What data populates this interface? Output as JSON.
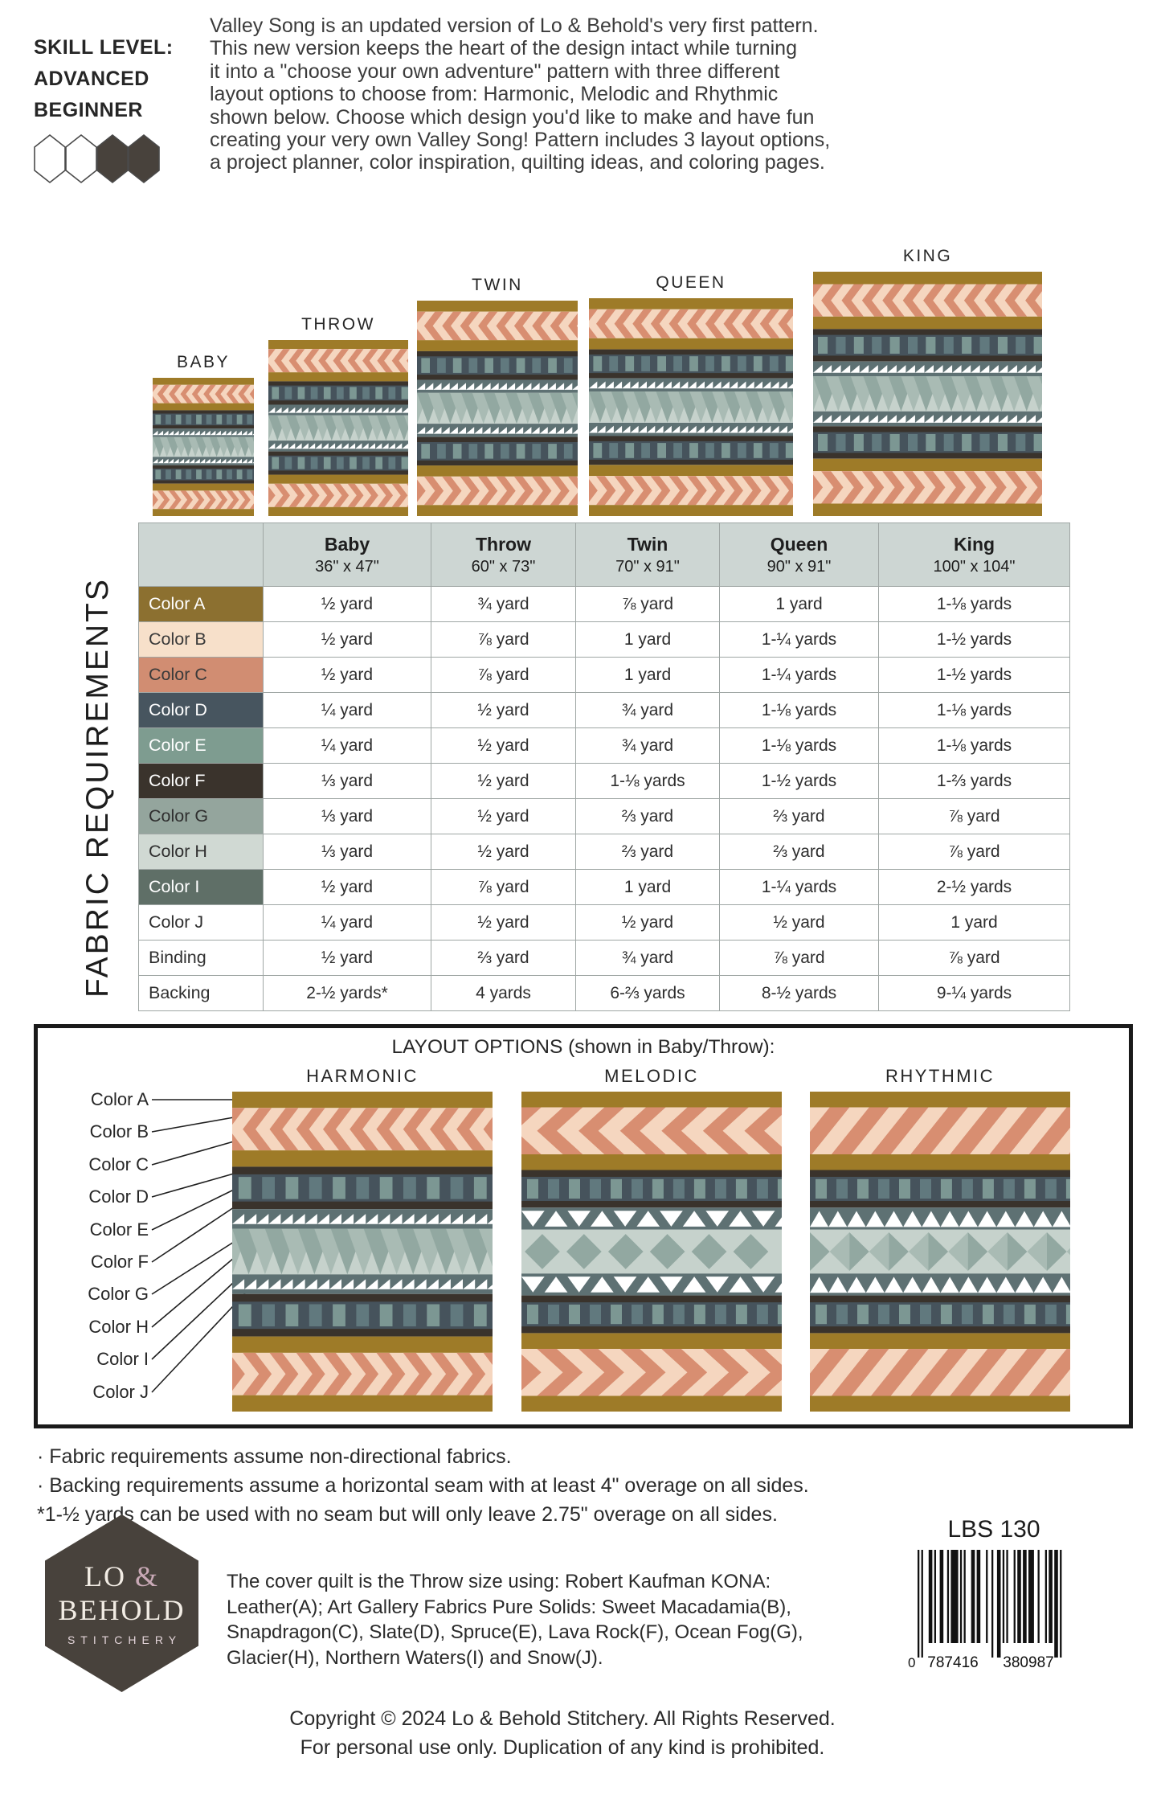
{
  "skill": {
    "title": "SKILL LEVEL:",
    "level_line1": "ADVANCED",
    "level_line2": "BEGINNER",
    "hexagons": [
      "outline",
      "outline",
      "filled",
      "filled"
    ]
  },
  "intro": "Valley Song is an updated version of Lo & Behold's very first pattern.\nThis new version keeps the heart of the design intact while turning\nit into a \"choose your own adventure\" pattern with three different\nlayout options to choose from: Harmonic, Melodic and Rhythmic\nshown below. Choose which design you'd like to make and have fun\ncreating your very own Valley Song! Pattern includes 3 layout options,\na project planner, color inspiration, quilting ideas, and coloring pages.",
  "sizes": [
    "BABY",
    "THROW",
    "TWIN",
    "QUEEN",
    "KING"
  ],
  "fabric_table": {
    "section_title": "FABRIC REQUIREMENTS",
    "columns": [
      {
        "name": "Baby",
        "dims": "36\" x 47\""
      },
      {
        "name": "Throw",
        "dims": "60\" x 73\""
      },
      {
        "name": "Twin",
        "dims": "70\" x 91\""
      },
      {
        "name": "Queen",
        "dims": "90\" x 91\""
      },
      {
        "name": "King",
        "dims": "100\" x 104\""
      }
    ],
    "rows": [
      {
        "label": "Color A",
        "swatch": "#8C7030",
        "text": "#FFFFFF",
        "values": [
          "½ yard",
          "¾ yard",
          "⅞ yard",
          "1 yard",
          "1-⅛ yards"
        ]
      },
      {
        "label": "Color B",
        "swatch": "#F7E0CA",
        "text": "#3A3A3A",
        "values": [
          "½ yard",
          "⅞ yard",
          "1 yard",
          "1-¼ yards",
          "1-½ yards"
        ]
      },
      {
        "label": "Color C",
        "swatch": "#D18D72",
        "text": "#3A3A3A",
        "values": [
          "½ yard",
          "⅞ yard",
          "1 yard",
          "1-¼ yards",
          "1-½ yards"
        ]
      },
      {
        "label": "Color D",
        "swatch": "#47555F",
        "text": "#FFFFFF",
        "values": [
          "¼ yard",
          "½ yard",
          "¾ yard",
          "1-⅛ yards",
          "1-⅛ yards"
        ]
      },
      {
        "label": "Color E",
        "swatch": "#7E9C90",
        "text": "#FFFFFF",
        "values": [
          "¼ yard",
          "½ yard",
          "¾ yard",
          "1-⅛ yards",
          "1-⅛ yards"
        ]
      },
      {
        "label": "Color F",
        "swatch": "#3A332C",
        "text": "#FFFFFF",
        "values": [
          "⅓ yard",
          "½ yard",
          "1-⅛ yards",
          "1-½ yards",
          "1-⅔ yards"
        ]
      },
      {
        "label": "Color G",
        "swatch": "#94A59D",
        "text": "#2F2F2F",
        "values": [
          "⅓ yard",
          "½ yard",
          "⅔ yard",
          "⅔ yard",
          "⅞ yard"
        ]
      },
      {
        "label": "Color H",
        "swatch": "#D0D9D3",
        "text": "#2F2F2F",
        "values": [
          "⅓ yard",
          "½ yard",
          "⅔ yard",
          "⅔ yard",
          "⅞ yard"
        ]
      },
      {
        "label": "Color I",
        "swatch": "#5F6F67",
        "text": "#FFFFFF",
        "values": [
          "½ yard",
          "⅞ yard",
          "1 yard",
          "1-¼ yards",
          "2-½ yards"
        ]
      },
      {
        "label": "Color J",
        "swatch": "#FFFFFF",
        "text": "#2F2F2F",
        "values": [
          "¼ yard",
          "½ yard",
          "½ yard",
          "½ yard",
          "1 yard"
        ]
      },
      {
        "label": "Binding",
        "swatch": "#FFFFFF",
        "text": "#2F2F2F",
        "values": [
          "½ yard",
          "⅔ yard",
          "¾ yard",
          "⅞ yard",
          "⅞ yard"
        ]
      },
      {
        "label": "Backing",
        "swatch": "#FFFFFF",
        "text": "#2F2F2F",
        "values": [
          "2-½ yards*",
          "4 yards",
          "6-⅔ yards",
          "8-½ yards",
          "9-¼ yards"
        ]
      }
    ]
  },
  "layout_options": {
    "title": "LAYOUT OPTIONS (shown in Baby/Throw):",
    "variants": [
      "HARMONIC",
      "MELODIC",
      "RHYTHMIC"
    ],
    "color_labels": [
      "Color A",
      "Color B",
      "Color C",
      "Color D",
      "Color E",
      "Color F",
      "Color G",
      "Color H",
      "Color I",
      "Color J"
    ]
  },
  "notes": [
    "· Fabric requirements assume non-directional fabrics.",
    "· Backing requirements assume a horizontal seam with at least 4\" overage on all sides.",
    "*1-½ yards can be used with no seam but will only leave 2.75\" overage on all sides."
  ],
  "footer": {
    "pattern_number": "LBS 130",
    "barcode_digits": {
      "prefix": "0",
      "group1": "787416",
      "group2": "380987"
    },
    "logo": {
      "line1_lo": "LO ",
      "line1_amp": "&",
      "line2": "BEHOLD",
      "line3": "STITCHERY"
    },
    "cover_text": "The cover quilt is the Throw size using: Robert Kaufman KONA:\nLeather(A); Art Gallery Fabrics Pure Solids: Sweet Macadamia(B),\nSnapdragon(C), Slate(D), Spruce(E), Lava Rock(F), Ocean Fog(G),\nGlacier(H), Northern Waters(I) and Snow(J).",
    "copyright1": "Copyright © 2024 Lo & Behold Stitchery. All Rights Reserved.",
    "copyright2": "For personal use only. Duplication of any kind is prohibited."
  },
  "palette": {
    "gold": "#9E7B28",
    "peach": "#F5D6BF",
    "salmon": "#D88E71",
    "dark": "#3A332C",
    "slate": "#46535C",
    "teal": "#7C9793",
    "teal_dark": "#61797E",
    "saw_bg": "#5E7173",
    "sage_light": "#C6D2CC",
    "sage_dark": "#92A8A1",
    "sage_mid": "#A9BBB4",
    "white": "#FFFFFF",
    "logo_bg": "#48423C",
    "logo_accent": "#C9A9B6",
    "border": "#1A1A1A"
  }
}
